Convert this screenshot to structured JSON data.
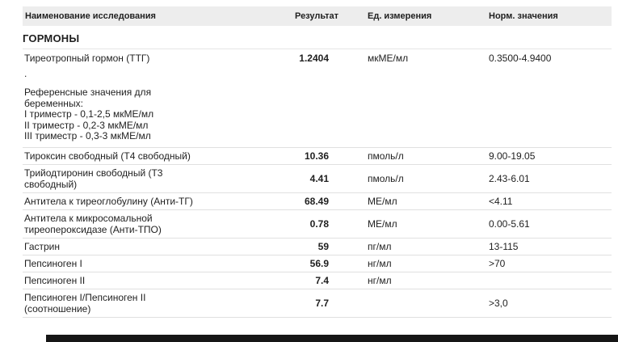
{
  "colors": {
    "header_bg": "#ededed",
    "row_border": "#e0e0e0",
    "bottom_bar": "#161616"
  },
  "table": {
    "headers": {
      "name": "Наименование исследования",
      "result": "Результат",
      "unit": "Ед. измерения",
      "norm": "Норм. значения"
    },
    "section_title": "ГОРМОНЫ",
    "rows": [
      {
        "name": "Тиреотропный гормон (ТТГ)",
        "note_dot": ".",
        "note_lines": [
          "Референсные значения для беременных:",
          "I триместр - 0,1-2,5 мкМЕ/мл",
          "II триместр - 0,2-3 мкМЕ/мл",
          "III триместр - 0,3-3 мкМЕ/мл"
        ],
        "result": "1.2404",
        "unit": "мкМЕ/мл",
        "norm": "0.3500-4.9400"
      },
      {
        "name": "Тироксин свободный (Т4 свободный)",
        "result": "10.36",
        "unit": "пмоль/л",
        "norm": "9.00-19.05"
      },
      {
        "name": "Трийодтиронин свободный (Т3 свободный)",
        "result": "4.41",
        "unit": "пмоль/л",
        "norm": "2.43-6.01"
      },
      {
        "name": "Антитела к тиреоглобулину (Анти-ТГ)",
        "result": "68.49",
        "unit": "МЕ/мл",
        "norm": "<4.11"
      },
      {
        "name": "Антитела к микросомальной тиреопероксидазе (Анти-ТПО)",
        "result": "0.78",
        "unit": "МЕ/мл",
        "norm": "0.00-5.61"
      },
      {
        "name": "Гастрин",
        "result": "59",
        "unit": "пг/мл",
        "norm": "13-115"
      },
      {
        "name": "Пепсиноген I",
        "result": "56.9",
        "unit": "нг/мл",
        "norm": ">70"
      },
      {
        "name": "Пепсиноген II",
        "result": "7.4",
        "unit": "нг/мл",
        "norm": ""
      },
      {
        "name": "Пепсиноген I/Пепсиноген II (соотношение)",
        "result": "7.7",
        "unit": "",
        "norm": ">3,0"
      }
    ]
  }
}
